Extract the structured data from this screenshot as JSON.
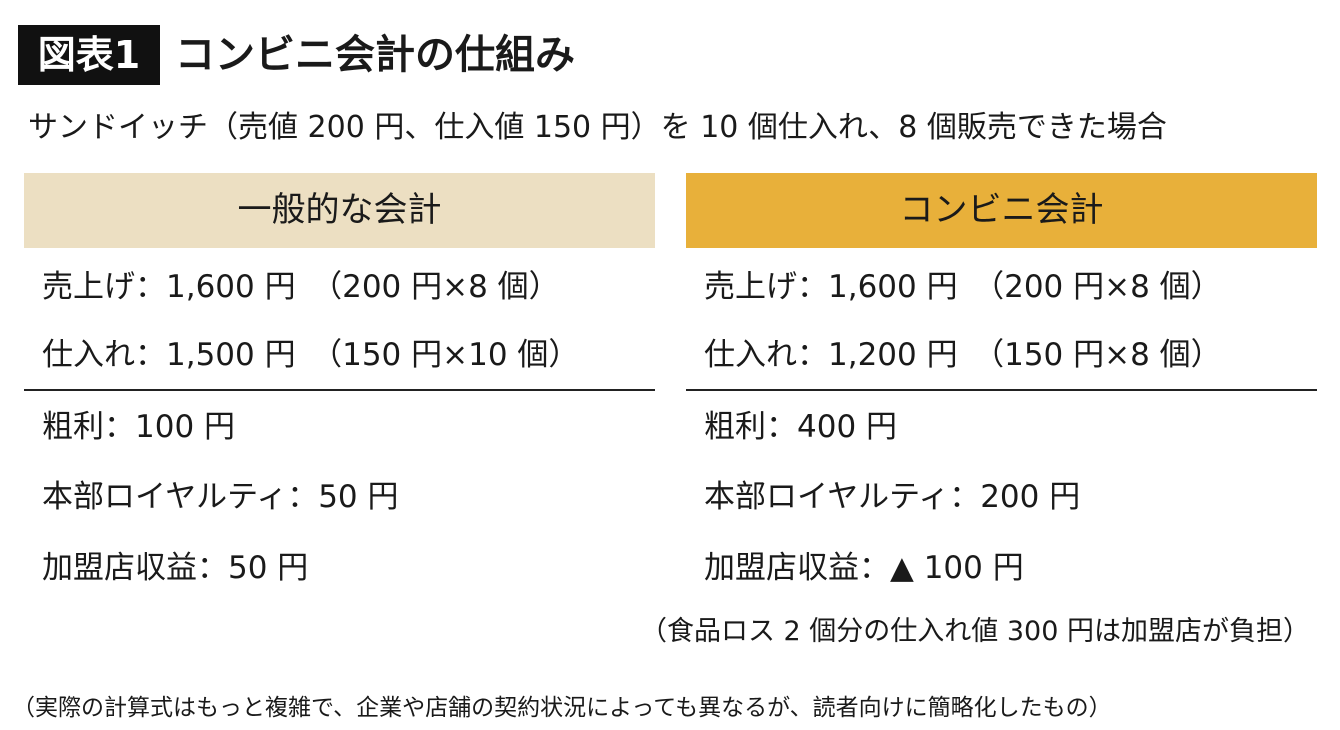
{
  "header": {
    "badge": "図表1",
    "title": "コンビニ会計の仕組み"
  },
  "subtitle": "サンドイッチ（売値 200 円、仕入値 150 円）を 10 個仕入れ、8 個販売できた場合",
  "columns": [
    {
      "heading": "一般的な会計",
      "rows": [
        "売上げ：1,600 円　（200 円×8 個）",
        "仕入れ：1,500 円　（150 円×10 個）"
      ],
      "results": [
        "粗利：100 円",
        "本部ロイヤルティ：50 円",
        "加盟店収益：50 円"
      ]
    },
    {
      "heading": "コンビニ会計",
      "rows": [
        "売上げ：1,600 円　（200 円×8 個）",
        "仕入れ：1,200 円　（150 円×8 個）"
      ],
      "results": [
        "粗利：400 円",
        "本部ロイヤルティ：200 円",
        "加盟店収益：▲ 100 円"
      ]
    }
  ],
  "note": "（食品ロス 2 個分の仕入れ値 300 円は加盟店が負担）",
  "footnote": "（実際の計算式はもっと複雑で、企業や店舗の契約状況によっても異なるが、読者向けに簡略化したもの）"
}
